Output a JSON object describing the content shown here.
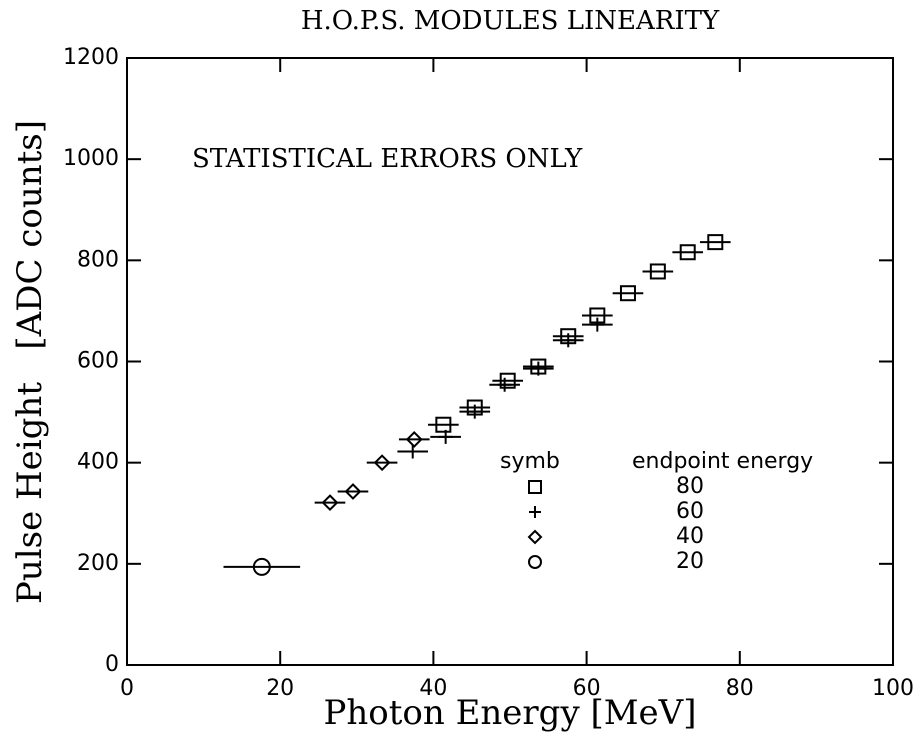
{
  "chart_data": {
    "type": "scatter",
    "title": "H.O.P.S. MODULES LINEARITY",
    "xlabel": "Photon Energy [MeV]",
    "ylabel": "Pulse Height   [ADC counts]",
    "annotation": "STATISTICAL ERRORS ONLY",
    "legend_header": [
      "symb",
      "endpoint energy"
    ],
    "xlim": [
      0,
      100
    ],
    "xticks": [
      0,
      20,
      40,
      60,
      80,
      100
    ],
    "ylim": [
      0,
      1200
    ],
    "yticks": [
      0,
      200,
      400,
      600,
      800,
      1000,
      1200
    ],
    "series": [
      {
        "name": "80",
        "marker": "square",
        "color": "#000000",
        "xerr": 2,
        "x": [
          41.3,
          45.4,
          49.7,
          53.7,
          57.6,
          61.4,
          65.4,
          69.3,
          73.2,
          76.8
        ],
        "values": [
          475,
          509,
          562,
          590,
          650,
          691,
          735,
          778,
          816,
          836
        ]
      },
      {
        "name": "60",
        "marker": "plus",
        "color": "#000000",
        "xerr": 2,
        "x": [
          37.3,
          41.6,
          45.4,
          49.3,
          53.7,
          57.6,
          61.4
        ],
        "values": [
          422,
          451,
          501,
          554,
          586,
          642,
          673
        ]
      },
      {
        "name": "40",
        "marker": "diamond",
        "color": "#000000",
        "xerr": 2,
        "x": [
          26.5,
          29.5,
          33.3,
          37.5
        ],
        "values": [
          321,
          343,
          400,
          446
        ]
      },
      {
        "name": "20",
        "marker": "circle",
        "color": "#000000",
        "xerr": 5,
        "x": [
          17.6
        ],
        "values": [
          194
        ]
      }
    ]
  }
}
